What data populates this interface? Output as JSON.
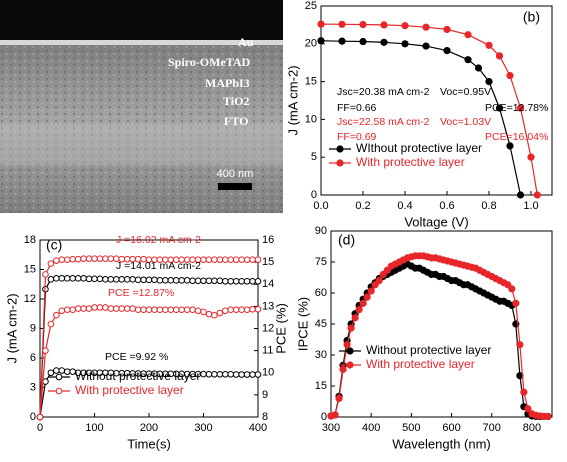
{
  "image": {
    "labels": [
      "Au",
      "Spiro-OMeTAD",
      "MAPbI3",
      "TiO2",
      "FTO"
    ],
    "scale_bar": "400 nm"
  },
  "chart_data": [
    {
      "type": "line",
      "panel_label": "(b)",
      "x_label": "Voltage (V)",
      "y_label": "J (mA cm-2)",
      "xlim": [
        0,
        1.1
      ],
      "xticks": [
        {
          "value": 0,
          "label": "0.0"
        },
        0.2,
        0.4,
        0.6,
        0.8,
        {
          "value": 1,
          "label": "1.0"
        }
      ],
      "ylim": [
        0,
        25
      ],
      "yticks": [
        0,
        5,
        10,
        15,
        20,
        25
      ],
      "grid": false,
      "legend": "lower left",
      "marker": "filled",
      "series": [
        {
          "name": "WIthout protective layer",
          "color": "#000000",
          "x": [
            0,
            0.1,
            0.2,
            0.3,
            0.4,
            0.5,
            0.6,
            0.7,
            0.75,
            0.8,
            0.85,
            0.9,
            0.95
          ],
          "values": [
            20.4,
            20.35,
            20.3,
            20.2,
            20.0,
            19.7,
            19.1,
            17.9,
            16.8,
            15.0,
            11.5,
            6.5,
            0
          ]
        },
        {
          "name": "With protective layer",
          "color": "#e8262a",
          "x": [
            0,
            0.1,
            0.2,
            0.3,
            0.4,
            0.5,
            0.6,
            0.7,
            0.8,
            0.85,
            0.9,
            0.95,
            1.0,
            1.03
          ],
          "values": [
            22.6,
            22.58,
            22.55,
            22.5,
            22.4,
            22.2,
            21.9,
            21.2,
            19.8,
            18.4,
            15.8,
            11.5,
            5,
            0
          ]
        }
      ],
      "annotations": [
        {
          "text": "Jsc=20.38 mA cm-2",
          "color": "#000000"
        },
        {
          "text": "Voc=0.95V",
          "color": "#000000"
        },
        {
          "text": "FF=0.66",
          "color": "#000000"
        },
        {
          "text": "PCE=12.78%",
          "color": "#000000"
        },
        {
          "text": "Jsc=22.58 mA cm-2",
          "color": "#e8262a"
        },
        {
          "text": "Voc=1.03V",
          "color": "#e8262a"
        },
        {
          "text": "FF=0.69",
          "color": "#e8262a"
        },
        {
          "text": "PCE=16.04%",
          "color": "#e8262a"
        }
      ]
    },
    {
      "type": "line",
      "panel_label": "(c)",
      "x_label": "Time(s)",
      "y_label": "J (mA cm-2)",
      "y2_label": "PCE (%)",
      "xlim": [
        0,
        400
      ],
      "xticks": [
        0,
        100,
        200,
        300,
        400
      ],
      "ylim": [
        0,
        18
      ],
      "yticks": [
        0,
        3,
        6,
        9,
        12,
        15,
        18
      ],
      "y2lim": [
        8,
        16
      ],
      "y2ticks": [
        8,
        9,
        10,
        11,
        12,
        13,
        14,
        15,
        16
      ],
      "grid": false,
      "legend": "lower left",
      "marker": "open",
      "series": [
        {
          "name": "Without protective layer",
          "color": "#000000",
          "x": [
            0,
            10,
            20,
            30,
            40,
            50,
            60,
            70,
            80,
            90,
            100,
            110,
            120,
            130,
            140,
            150,
            160,
            170,
            180,
            190,
            200,
            210,
            220,
            230,
            240,
            250,
            260,
            270,
            280,
            290,
            300,
            310,
            320,
            330,
            340,
            350,
            360,
            370,
            380,
            390,
            400
          ],
          "values": [
            0,
            13.0,
            14.0,
            14.1,
            14.1,
            14.1,
            14.1,
            14.1,
            14.1,
            14.05,
            14.05,
            14.05,
            14.0,
            14.0,
            14.0,
            14.0,
            14.0,
            14.0,
            13.95,
            13.95,
            13.95,
            13.95,
            13.9,
            13.9,
            13.9,
            13.9,
            13.9,
            13.9,
            13.85,
            13.85,
            13.85,
            13.85,
            13.85,
            13.85,
            13.8,
            13.8,
            13.8,
            13.8,
            13.8,
            13.8,
            13.8
          ]
        },
        {
          "name": "With protective layer",
          "color": "#e8262a",
          "x": [
            0,
            10,
            20,
            30,
            40,
            50,
            60,
            70,
            80,
            90,
            100,
            110,
            120,
            130,
            140,
            150,
            160,
            170,
            180,
            190,
            200,
            210,
            220,
            230,
            240,
            250,
            260,
            270,
            280,
            290,
            300,
            310,
            320,
            330,
            340,
            350,
            360,
            370,
            380,
            390,
            400
          ],
          "values": [
            0,
            14.5,
            15.6,
            15.9,
            16.0,
            16.0,
            16.05,
            16.05,
            16.1,
            16.1,
            16.1,
            16.1,
            16.1,
            16.1,
            16.1,
            16.05,
            16.05,
            16.05,
            16.05,
            16.05,
            16.0,
            16.0,
            16.0,
            16.0,
            16.0,
            16.0,
            16.0,
            16.0,
            16.0,
            16.0,
            16.0,
            16.0,
            16.0,
            16.0,
            16.0,
            16.0,
            16.0,
            16.0,
            16.0,
            16.0,
            16.0
          ]
        },
        {
          "axis": "y2",
          "color": "#000000",
          "x": [
            0,
            10,
            20,
            30,
            40,
            50,
            60,
            70,
            80,
            90,
            100,
            110,
            120,
            130,
            140,
            150,
            160,
            170,
            180,
            190,
            200,
            210,
            220,
            230,
            240,
            250,
            260,
            270,
            280,
            290,
            300,
            310,
            320,
            330,
            340,
            350,
            360,
            370,
            380,
            390,
            400
          ],
          "values": [
            8.0,
            9.6,
            10.0,
            10.1,
            10.1,
            10.05,
            10.05,
            10.0,
            10.0,
            10.0,
            10.0,
            10.0,
            10.0,
            10.0,
            9.98,
            9.98,
            9.98,
            9.97,
            9.97,
            9.96,
            9.96,
            9.96,
            9.95,
            9.95,
            9.95,
            9.95,
            9.95,
            9.94,
            9.94,
            9.94,
            9.94,
            9.93,
            9.93,
            9.93,
            9.93,
            9.93,
            9.92,
            9.92,
            9.92,
            9.92,
            9.92
          ]
        },
        {
          "axis": "y2",
          "color": "#e8262a",
          "x": [
            0,
            10,
            20,
            30,
            40,
            50,
            60,
            70,
            80,
            90,
            100,
            110,
            120,
            130,
            140,
            150,
            160,
            170,
            180,
            190,
            200,
            210,
            220,
            230,
            240,
            250,
            260,
            270,
            280,
            290,
            300,
            310,
            320,
            330,
            340,
            350,
            360,
            370,
            380,
            390,
            400
          ],
          "values": [
            8.0,
            11.0,
            12.2,
            12.6,
            12.8,
            12.85,
            12.85,
            12.9,
            12.9,
            12.9,
            12.95,
            12.95,
            12.95,
            12.9,
            12.9,
            12.9,
            12.9,
            12.9,
            12.85,
            12.85,
            12.85,
            12.85,
            12.85,
            12.85,
            12.85,
            12.85,
            12.85,
            12.85,
            12.85,
            12.8,
            12.75,
            12.65,
            12.6,
            12.7,
            12.8,
            12.85,
            12.85,
            12.85,
            12.85,
            12.87,
            12.87
          ]
        }
      ],
      "annotations": [
        {
          "text": "J =16.02 mA cm-2",
          "color": "#e8262a"
        },
        {
          "text": "J =14.01 mA cm-2",
          "color": "#000000"
        },
        {
          "text": "PCE =12.87%",
          "color": "#e8262a"
        },
        {
          "text": "PCE =9.92 %",
          "color": "#000000"
        }
      ]
    },
    {
      "type": "line",
      "panel_label": "(d)",
      "x_label": "Wavelength (nm)",
      "y_label": "IPCE (%)",
      "xlim": [
        300,
        850
      ],
      "xticks": [
        300,
        400,
        500,
        600,
        700,
        800
      ],
      "ylim": [
        0,
        90
      ],
      "yticks": [
        0,
        15,
        30,
        45,
        60,
        75,
        90
      ],
      "grid": false,
      "legend": "lower left",
      "marker": "filled",
      "series": [
        {
          "name": "Without protective layer",
          "color": "#000000",
          "x": [
            300,
            310,
            320,
            330,
            340,
            350,
            360,
            370,
            380,
            390,
            400,
            410,
            420,
            430,
            440,
            450,
            460,
            470,
            480,
            490,
            500,
            510,
            520,
            530,
            540,
            550,
            560,
            570,
            580,
            590,
            600,
            610,
            620,
            630,
            640,
            650,
            660,
            670,
            680,
            690,
            700,
            710,
            720,
            730,
            740,
            750,
            760,
            770,
            780,
            790,
            800,
            810,
            820,
            830,
            840
          ],
          "values": [
            0.5,
            1,
            10,
            25,
            37,
            45,
            50,
            54,
            57,
            60,
            63,
            65,
            67,
            68,
            69,
            70,
            71,
            72,
            73,
            74,
            73,
            72,
            72,
            71,
            70,
            69,
            69,
            68,
            68,
            67,
            66,
            66,
            65,
            64,
            64,
            63,
            62,
            61,
            60,
            59,
            58,
            57,
            56,
            56,
            55,
            54,
            45,
            20,
            5,
            1.5,
            0.5,
            0.3,
            0.2,
            0.2,
            0.2
          ]
        },
        {
          "name": "With protective layer",
          "color": "#e8262a",
          "x": [
            300,
            310,
            320,
            330,
            340,
            350,
            360,
            370,
            380,
            390,
            400,
            410,
            420,
            430,
            440,
            450,
            460,
            470,
            480,
            490,
            500,
            510,
            520,
            530,
            540,
            550,
            560,
            570,
            580,
            590,
            600,
            610,
            620,
            630,
            640,
            650,
            660,
            670,
            680,
            690,
            700,
            710,
            720,
            730,
            740,
            750,
            760,
            770,
            780,
            790,
            800,
            810,
            820,
            830,
            840
          ],
          "values": [
            0.5,
            1,
            9,
            23,
            35,
            43,
            48,
            52,
            55,
            58,
            61,
            64,
            66,
            69,
            71,
            73,
            74,
            75,
            76,
            77,
            77.5,
            78,
            78,
            78,
            77.5,
            77,
            77,
            76.5,
            76,
            75.5,
            75,
            74.5,
            74,
            73.5,
            73,
            72.5,
            72,
            71,
            70,
            69,
            68,
            67,
            66,
            65,
            64,
            62,
            55,
            35,
            12,
            4,
            1.5,
            0.8,
            0.5,
            0.3,
            0.3
          ]
        }
      ]
    }
  ]
}
